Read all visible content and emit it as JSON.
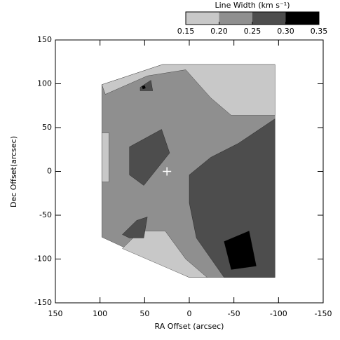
{
  "chart_data": {
    "type": "contour",
    "xlabel": "RA Offset (arcsec)",
    "ylabel": "Dec Offset(arcsec)",
    "xlim": [
      150,
      -150
    ],
    "ylim": [
      -150,
      150
    ],
    "xticks": [
      150,
      100,
      50,
      0,
      -50,
      -100,
      -150
    ],
    "yticks": [
      -150,
      -100,
      -50,
      0,
      50,
      100,
      150
    ],
    "colorbar": {
      "title": "Line Width (km s⁻¹)",
      "lim": [
        0.15,
        0.35
      ],
      "ticks": [
        0.15,
        {
          "value": 0.2,
          "label": "0.20"
        },
        0.25,
        {
          "value": 0.3,
          "label": "0.30"
        },
        0.35
      ],
      "levels": [
        0.15,
        0.2,
        0.25,
        0.3
      ],
      "colors": [
        "#c8c8c8",
        "#8f8f8f",
        "#4d4d4d",
        "#000000"
      ]
    },
    "regions": [
      {
        "level": 0.2,
        "points": [
          [
            98,
            99
          ],
          [
            30,
            122
          ],
          [
            -96,
            122
          ],
          [
            -96,
            -121
          ],
          [
            0,
            -121
          ],
          [
            98,
            -75
          ]
        ]
      },
      {
        "level": 0.15,
        "points": [
          [
            98,
            99
          ],
          [
            30,
            122
          ],
          [
            -96,
            122
          ],
          [
            -96,
            64
          ],
          [
            -47,
            64
          ],
          [
            -24,
            84
          ],
          [
            4,
            116
          ],
          [
            47,
            109
          ],
          [
            94,
            88
          ]
        ]
      },
      {
        "level": 0.15,
        "points": [
          [
            98,
            44
          ],
          [
            90,
            44
          ],
          [
            90,
            -12
          ],
          [
            98,
            -12
          ]
        ]
      },
      {
        "level": 0.15,
        "points": [
          [
            75,
            -88
          ],
          [
            55,
            -68
          ],
          [
            27,
            -68
          ],
          [
            4,
            -100
          ],
          [
            -20,
            -121
          ],
          [
            0,
            -121
          ]
        ]
      },
      {
        "level": 0.25,
        "points": [
          [
            67,
            28
          ],
          [
            31,
            48
          ],
          [
            22,
            21
          ],
          [
            51,
            -16
          ],
          [
            67,
            -4
          ]
        ]
      },
      {
        "level": 0.25,
        "points": [
          [
            55,
            96
          ],
          [
            43,
            104
          ],
          [
            41,
            92
          ],
          [
            55,
            92
          ]
        ]
      },
      {
        "level": 0.25,
        "points": [
          [
            75,
            -72
          ],
          [
            59,
            -56
          ],
          [
            47,
            -52
          ],
          [
            51,
            -76
          ],
          [
            67,
            -76
          ]
        ]
      },
      {
        "level": 0.25,
        "points": [
          [
            0,
            -4
          ],
          [
            -24,
            16
          ],
          [
            -55,
            32
          ],
          [
            -96,
            60
          ],
          [
            -96,
            -121
          ],
          [
            -39,
            -121
          ],
          [
            -8,
            -76
          ],
          [
            0,
            -36
          ]
        ]
      },
      {
        "level": 0.3,
        "points": [
          [
            -39,
            -80
          ],
          [
            -67,
            -68
          ],
          [
            -75,
            -108
          ],
          [
            -47,
            -112
          ]
        ]
      },
      {
        "level": 0.3,
        "points": [
          [
            53,
            97
          ],
          [
            50,
            98
          ],
          [
            49,
            95
          ],
          [
            52,
            94
          ]
        ]
      }
    ],
    "reference_position": [
      25,
      0
    ]
  }
}
